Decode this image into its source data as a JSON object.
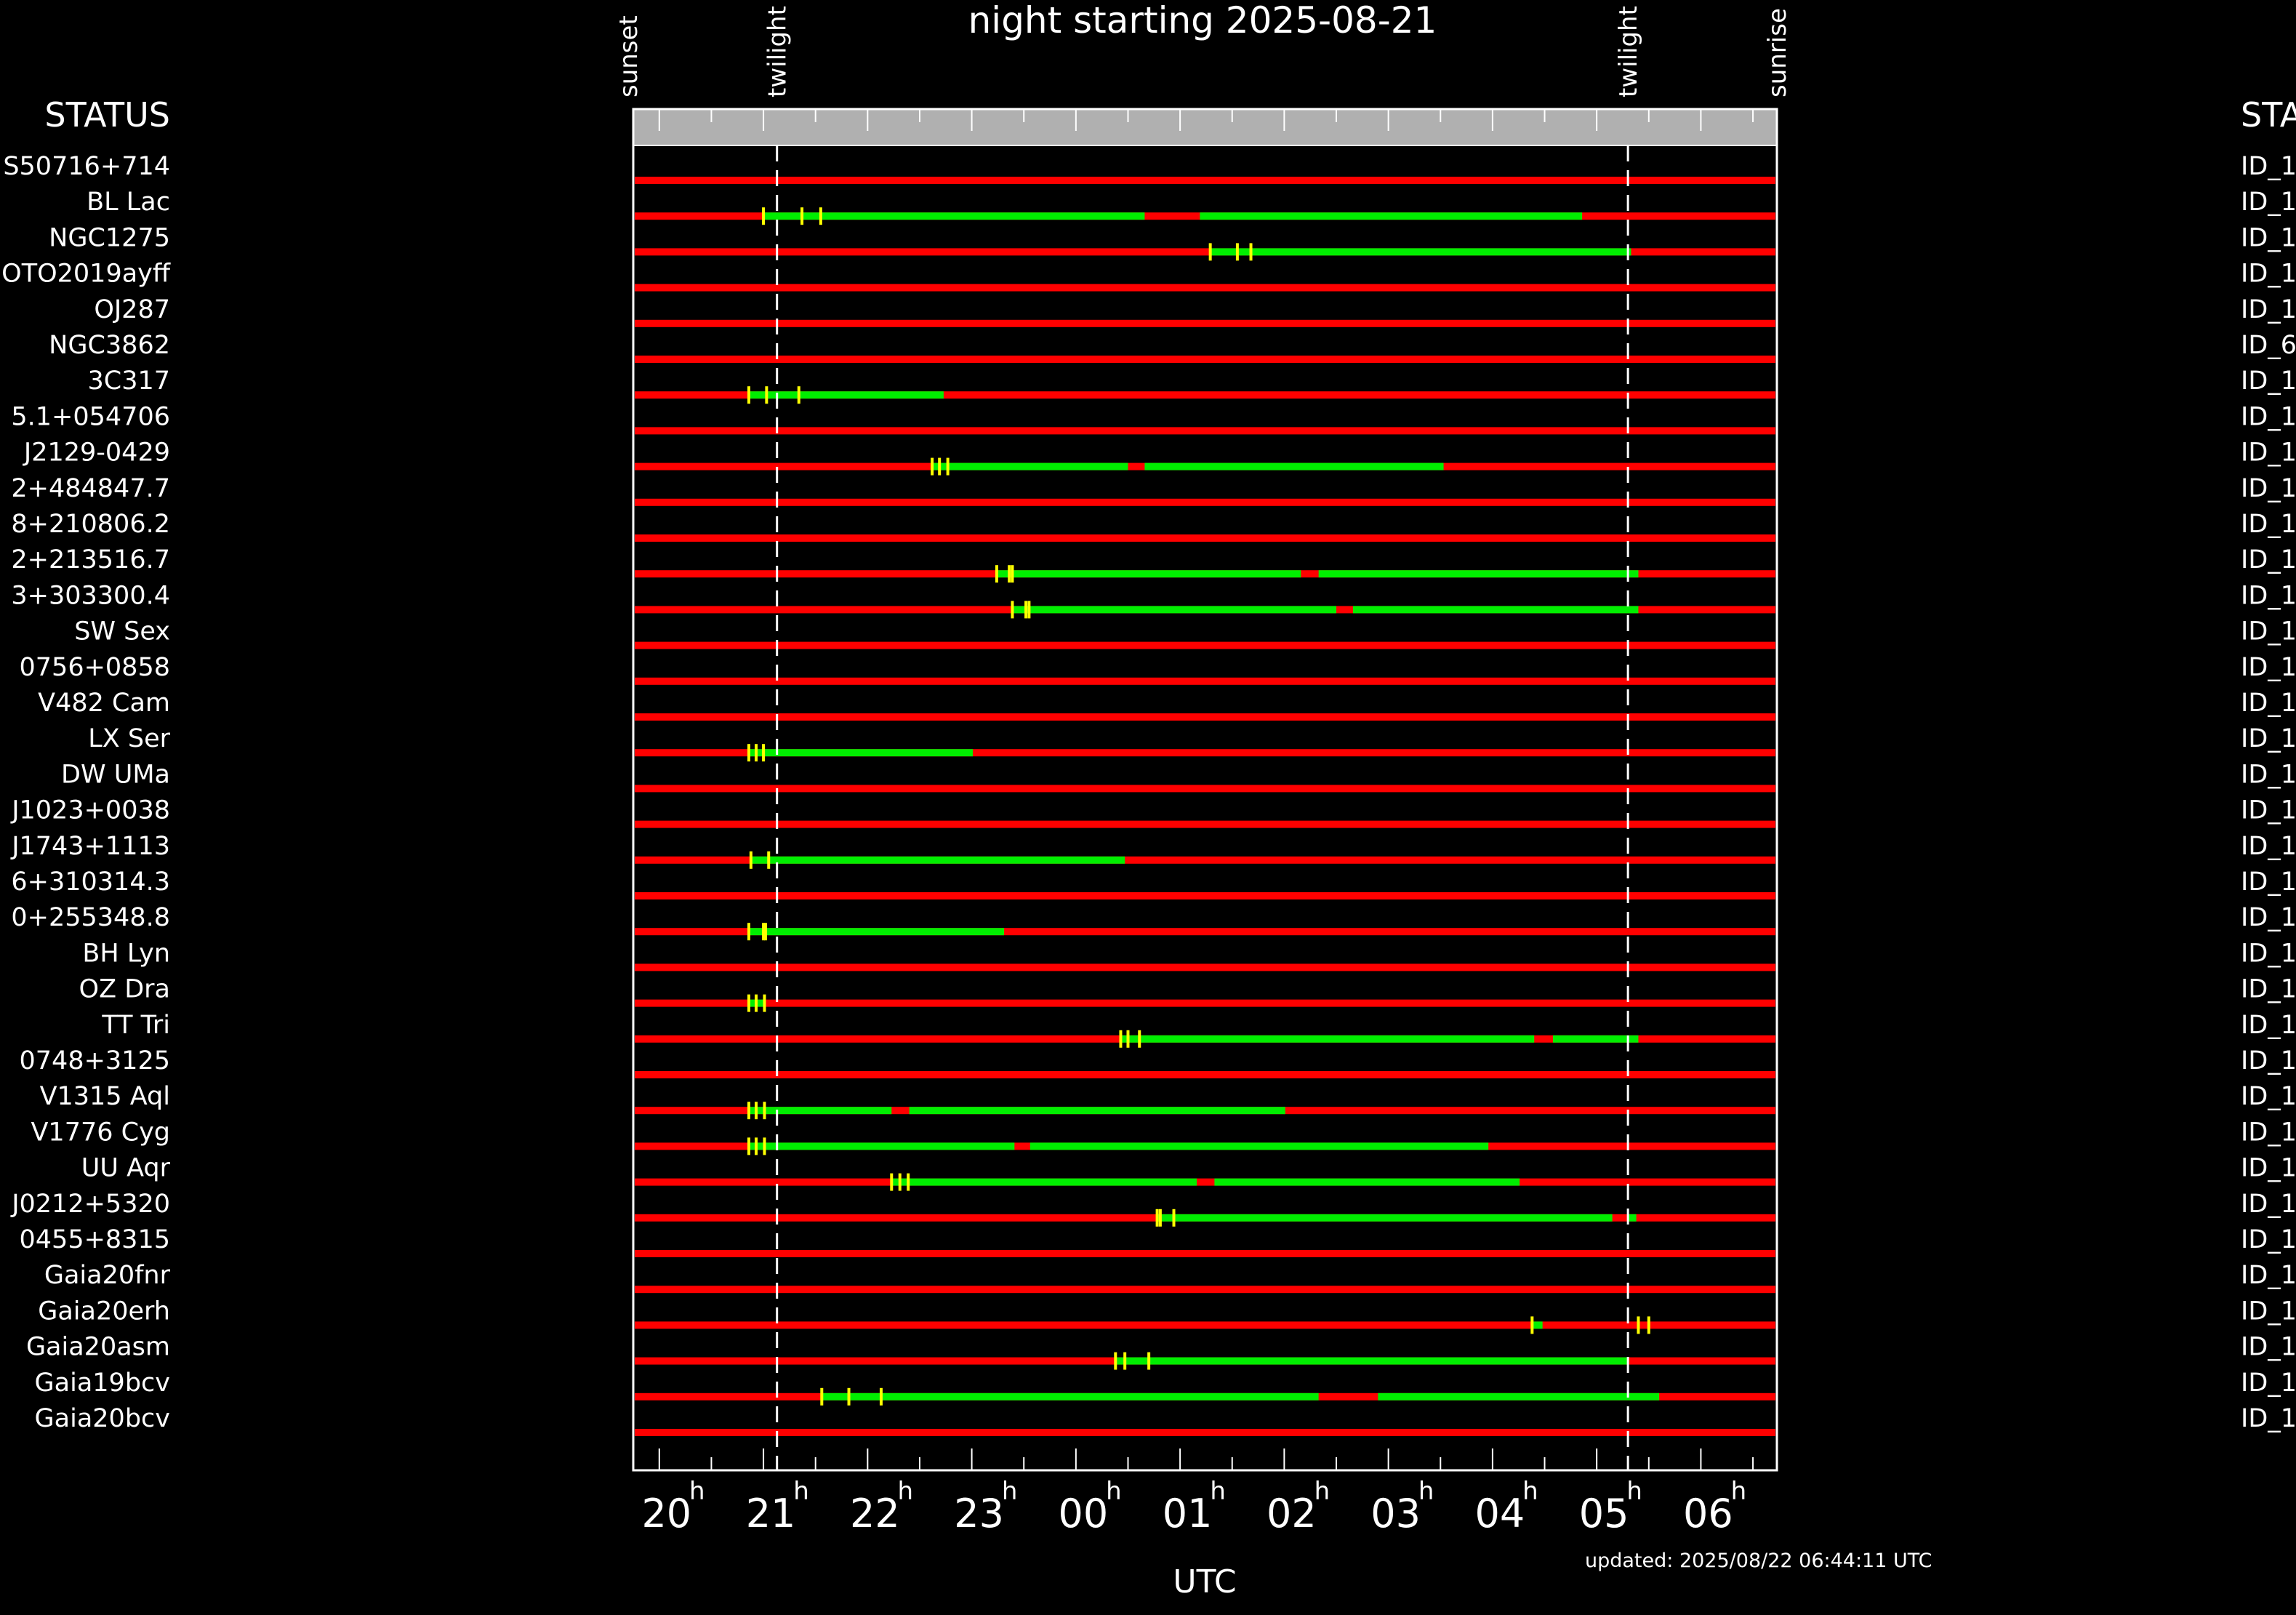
{
  "chart_data": {
    "type": "timeline",
    "title": "night starting 2025-08-21",
    "xlabel": "UTC",
    "left_header": "STATUS",
    "right_header": "STA",
    "updated": "updated: 2025/08/22 06:44:11 UTC",
    "x_range_hours": [
      19.75,
      30.73
    ],
    "tick_labels": [
      {
        "hour": 20,
        "label": "20"
      },
      {
        "hour": 21,
        "label": "21"
      },
      {
        "hour": 22,
        "label": "22"
      },
      {
        "hour": 23,
        "label": "23"
      },
      {
        "hour": 24,
        "label": "00"
      },
      {
        "hour": 25,
        "label": "01"
      },
      {
        "hour": 26,
        "label": "02"
      },
      {
        "hour": 27,
        "label": "03"
      },
      {
        "hour": 28,
        "label": "04"
      },
      {
        "hour": 29,
        "label": "05"
      },
      {
        "hour": 30,
        "label": "06"
      }
    ],
    "tick_suffix": "h",
    "events": [
      {
        "label": "sunset",
        "hour": 19.7,
        "line": false
      },
      {
        "label": "twilight",
        "hour": 21.13,
        "line": true
      },
      {
        "label": "twilight",
        "hour": 29.3,
        "line": true
      },
      {
        "label": "sunrise",
        "hour": 30.73,
        "line": false
      }
    ],
    "colors": {
      "unobservable": "#ff0000",
      "observable": "#00ee00",
      "marker": "#ffff00",
      "header_band": "#b0b0b0"
    },
    "rows": [
      {
        "name": "S50716+714",
        "id": "ID_1",
        "green": [],
        "marks": []
      },
      {
        "name": "BL Lac",
        "id": "ID_1",
        "green": [
          [
            21.0,
            24.66
          ],
          [
            25.19,
            28.86
          ]
        ],
        "marks": [
          21.0,
          21.37,
          21.55
        ]
      },
      {
        "name": "NGC1275",
        "id": "ID_1",
        "green": [
          [
            25.29,
            29.33
          ]
        ],
        "marks": [
          25.29,
          25.55,
          25.68
        ]
      },
      {
        "name": "OTO2019ayff",
        "id": "ID_1",
        "green": [],
        "marks": []
      },
      {
        "name": "OJ287",
        "id": "ID_1",
        "green": [],
        "marks": []
      },
      {
        "name": "NGC3862",
        "id": "ID_6",
        "green": [],
        "marks": []
      },
      {
        "name": "3C317",
        "id": "ID_1",
        "green": [
          [
            20.86,
            22.73
          ]
        ],
        "marks": [
          20.86,
          21.03,
          21.34
        ]
      },
      {
        "name": "5.1+054706",
        "id": "ID_1",
        "green": [],
        "marks": []
      },
      {
        "name": "J2129-0429",
        "id": "ID_1",
        "green": [
          [
            22.62,
            24.5
          ],
          [
            24.66,
            27.53
          ]
        ],
        "marks": [
          22.62,
          22.69,
          22.77
        ]
      },
      {
        "name": "2+484847.7",
        "id": "ID_1",
        "green": [],
        "marks": []
      },
      {
        "name": "8+210806.2",
        "id": "ID_1",
        "green": [],
        "marks": []
      },
      {
        "name": "2+213516.7",
        "id": "ID_1",
        "green": [
          [
            23.24,
            26.16
          ],
          [
            26.33,
            29.4
          ]
        ],
        "marks": [
          23.24,
          23.36,
          23.39
        ]
      },
      {
        "name": "3+303300.4",
        "id": "ID_1",
        "green": [
          [
            23.39,
            26.5
          ],
          [
            26.66,
            29.4
          ]
        ],
        "marks": [
          23.39,
          23.52,
          23.55
        ]
      },
      {
        "name": "SW Sex",
        "id": "ID_1",
        "green": [],
        "marks": []
      },
      {
        "name": "0756+0858",
        "id": "ID_1",
        "green": [],
        "marks": []
      },
      {
        "name": "V482 Cam",
        "id": "ID_1",
        "green": [],
        "marks": []
      },
      {
        "name": "LX Ser",
        "id": "ID_1",
        "green": [
          [
            20.86,
            23.01
          ]
        ],
        "marks": [
          20.86,
          20.93,
          21.0
        ]
      },
      {
        "name": "DW UMa",
        "id": "ID_1",
        "green": [],
        "marks": []
      },
      {
        "name": "J1023+0038",
        "id": "ID_1",
        "green": [],
        "marks": []
      },
      {
        "name": "J1743+1113",
        "id": "ID_1",
        "green": [
          [
            20.88,
            24.47
          ]
        ],
        "marks": [
          20.88,
          21.05
        ]
      },
      {
        "name": "6+310314.3",
        "id": "ID_1",
        "green": [],
        "marks": []
      },
      {
        "name": "0+255348.8",
        "id": "ID_1",
        "green": [
          [
            20.86,
            23.31
          ]
        ],
        "marks": [
          20.86,
          21.0,
          21.02
        ]
      },
      {
        "name": "BH Lyn",
        "id": "ID_1",
        "green": [],
        "marks": []
      },
      {
        "name": "OZ Dra",
        "id": "ID_1",
        "green": [
          [
            20.86,
            21.01
          ]
        ],
        "marks": [
          20.86,
          20.93,
          21.01
        ]
      },
      {
        "name": "TT Tri",
        "id": "ID_1",
        "green": [
          [
            24.43,
            28.4
          ],
          [
            28.58,
            29.4
          ]
        ],
        "marks": [
          24.43,
          24.5,
          24.61
        ]
      },
      {
        "name": "0748+3125",
        "id": "ID_1",
        "green": [],
        "marks": []
      },
      {
        "name": "V1315 Aql",
        "id": "ID_1",
        "green": [
          [
            20.86,
            22.23
          ],
          [
            22.4,
            26.01
          ]
        ],
        "marks": [
          20.86,
          20.93,
          21.01
        ]
      },
      {
        "name": "V1776 Cyg",
        "id": "ID_1",
        "green": [
          [
            20.86,
            23.41
          ],
          [
            23.56,
            27.96
          ]
        ],
        "marks": [
          20.86,
          20.93,
          21.01
        ]
      },
      {
        "name": "UU Aqr",
        "id": "ID_1",
        "green": [
          [
            22.23,
            25.16
          ],
          [
            25.33,
            28.26
          ]
        ],
        "marks": [
          22.23,
          22.31,
          22.39
        ]
      },
      {
        "name": "J0212+5320",
        "id": "ID_1",
        "green": [
          [
            24.78,
            29.15
          ],
          [
            29.3,
            29.38
          ]
        ],
        "marks": [
          24.78,
          24.81,
          24.94
        ]
      },
      {
        "name": "0455+8315",
        "id": "ID_1",
        "green": [],
        "marks": []
      },
      {
        "name": "Gaia20fnr",
        "id": "ID_1",
        "green": [],
        "marks": []
      },
      {
        "name": "Gaia20erh",
        "id": "ID_1",
        "green": [
          [
            28.38,
            28.48
          ]
        ],
        "marks": [
          28.38,
          29.4,
          29.5
        ]
      },
      {
        "name": "Gaia20asm",
        "id": "ID_1",
        "green": [
          [
            24.38,
            29.3
          ]
        ],
        "marks": [
          24.38,
          24.47,
          24.7
        ]
      },
      {
        "name": "Gaia19bcv",
        "id": "ID_1",
        "green": [
          [
            21.56,
            26.33
          ],
          [
            26.9,
            29.6
          ]
        ],
        "marks": [
          21.56,
          21.82,
          22.13
        ]
      },
      {
        "name": "Gaia20bcv",
        "id": "ID_1",
        "green": [],
        "marks": []
      }
    ]
  }
}
